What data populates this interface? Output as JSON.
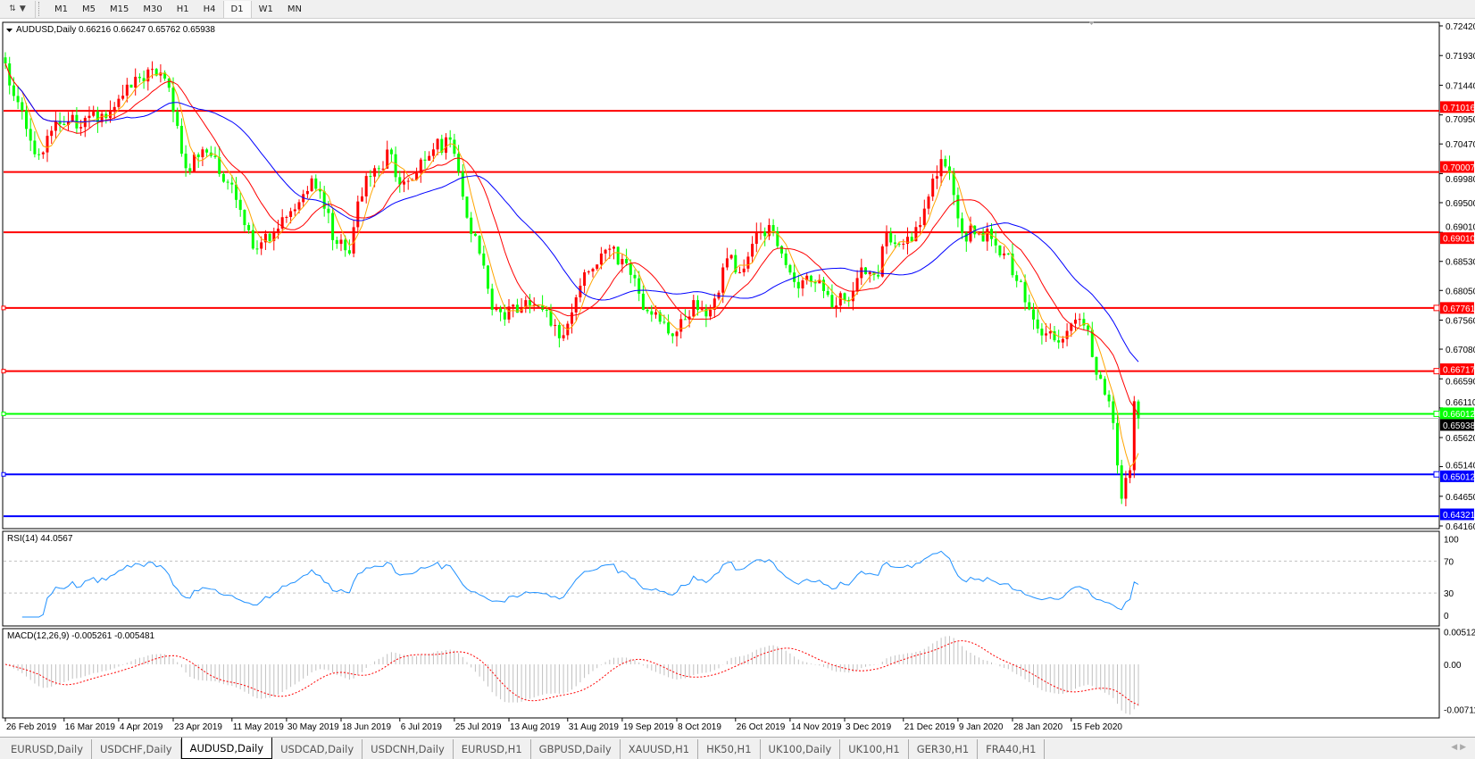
{
  "toolbar": {
    "icon": "line-studies-icon",
    "timeframes": [
      "M1",
      "M5",
      "M15",
      "M30",
      "H1",
      "H4",
      "D1",
      "W1",
      "MN"
    ],
    "active_timeframe": "D1"
  },
  "chart": {
    "header": "AUDUSD,Daily  0.66216 0.66247 0.65762 0.65938",
    "symbol": "AUDUSD",
    "period": "Daily",
    "current_price": "0.65938",
    "price_ticks": [
      "0.72420",
      "0.71930",
      "0.71440",
      "0.70950",
      "0.70470",
      "0.69980",
      "0.69500",
      "0.69010",
      "0.68530",
      "0.68050",
      "0.67560",
      "0.67080",
      "0.66590",
      "0.66110",
      "0.65620",
      "0.65140",
      "0.64650",
      "0.64160"
    ],
    "levels": [
      {
        "price": "0.71016",
        "color": "#ff0000"
      },
      {
        "price": "0.70007",
        "color": "#ff0000"
      },
      {
        "price": "0.69010",
        "color": "#ff0000"
      },
      {
        "price": "0.67761",
        "color": "#ff0000"
      },
      {
        "price": "0.66717",
        "color": "#ff0000"
      },
      {
        "price": "0.66012",
        "color": "#00ff00"
      },
      {
        "price": "0.65012",
        "color": "#0000ff"
      },
      {
        "price": "0.64321",
        "color": "#0000ff"
      }
    ],
    "date_ticks": [
      "26 Feb 2019",
      "16 Mar 2019",
      "4 Apr 2019",
      "23 Apr 2019",
      "11 May 2019",
      "30 May 2019",
      "18 Jun 2019",
      "6 Jul 2019",
      "25 Jul 2019",
      "13 Aug 2019",
      "31 Aug 2019",
      "19 Sep 2019",
      "8 Oct 2019",
      "26 Oct 2019",
      "14 Nov 2019",
      "3 Dec 2019",
      "21 Dec 2019",
      "9 Jan 2020",
      "28 Jan 2020",
      "15 Feb 2020"
    ],
    "colors": {
      "bull": "#ff0000",
      "bear": "#00ff00",
      "ma_fast": "#ffa500",
      "ma_mid": "#ff0000",
      "ma_slow": "#0000ff",
      "rsi": "#1e90ff",
      "macd_hist": "#c0c0c0",
      "macd_signal": "#ff0000"
    }
  },
  "rsi": {
    "label": "RSI(14) 44.0567",
    "ticks": [
      "100",
      "70",
      "30",
      "0"
    ]
  },
  "macd": {
    "label": "MACD(12,26,9) -0.005261 -0.005481",
    "ticks": [
      "0.005121",
      "0.00",
      "-0.00711"
    ]
  },
  "chart_data": {
    "type": "candlestick",
    "ylim": [
      0.6416,
      0.7242
    ],
    "approx_closes": [
      [
        "2019-02-26",
        0.718
      ],
      [
        "2019-03-01",
        0.7116
      ],
      [
        "2019-03-07",
        0.703
      ],
      [
        "2019-03-15",
        0.708
      ],
      [
        "2019-03-25",
        0.709
      ],
      [
        "2019-04-03",
        0.7108
      ],
      [
        "2019-04-09",
        0.714
      ],
      [
        "2019-04-15",
        0.717
      ],
      [
        "2019-04-19",
        0.7155
      ],
      [
        "2019-04-23",
        0.71
      ],
      [
        "2019-04-26",
        0.7007
      ],
      [
        "2019-05-02",
        0.7038
      ],
      [
        "2019-05-10",
        0.6983
      ],
      [
        "2019-05-16",
        0.6913
      ],
      [
        "2019-05-21",
        0.6874
      ],
      [
        "2019-05-27",
        0.69
      ],
      [
        "2019-05-31",
        0.6936
      ],
      [
        "2019-06-07",
        0.699
      ],
      [
        "2019-06-12",
        0.694
      ],
      [
        "2019-06-17",
        0.6882
      ],
      [
        "2019-06-20",
        0.6866
      ],
      [
        "2019-06-24",
        0.6952
      ],
      [
        "2019-06-28",
        0.7007
      ],
      [
        "2019-07-04",
        0.703
      ],
      [
        "2019-07-08",
        0.698
      ],
      [
        "2019-07-12",
        0.6999
      ],
      [
        "2019-07-18",
        0.7038
      ],
      [
        "2019-07-24",
        0.7054
      ],
      [
        "2019-07-29",
        0.696
      ],
      [
        "2019-08-02",
        0.6866
      ],
      [
        "2019-08-07",
        0.6773
      ],
      [
        "2019-08-12",
        0.6757
      ],
      [
        "2019-08-19",
        0.6789
      ],
      [
        "2019-08-23",
        0.6773
      ],
      [
        "2019-08-29",
        0.6726
      ],
      [
        "2019-09-02",
        0.675
      ],
      [
        "2019-09-06",
        0.6835
      ],
      [
        "2019-09-12",
        0.6866
      ],
      [
        "2019-09-16",
        0.6874
      ],
      [
        "2019-09-20",
        0.685
      ],
      [
        "2019-09-26",
        0.6773
      ],
      [
        "2019-09-30",
        0.6765
      ],
      [
        "2019-10-04",
        0.6734
      ],
      [
        "2019-10-10",
        0.6757
      ],
      [
        "2019-10-14",
        0.6789
      ],
      [
        "2019-10-18",
        0.6773
      ],
      [
        "2019-10-24",
        0.6858
      ],
      [
        "2019-10-29",
        0.6835
      ],
      [
        "2019-11-01",
        0.6882
      ],
      [
        "2019-11-07",
        0.6913
      ],
      [
        "2019-11-12",
        0.6866
      ],
      [
        "2019-11-15",
        0.6819
      ],
      [
        "2019-11-21",
        0.6819
      ],
      [
        "2019-11-26",
        0.6804
      ],
      [
        "2019-11-29",
        0.678
      ],
      [
        "2019-12-05",
        0.6804
      ],
      [
        "2019-12-09",
        0.6843
      ],
      [
        "2019-12-13",
        0.6828
      ],
      [
        "2019-12-17",
        0.69
      ],
      [
        "2019-12-23",
        0.6882
      ],
      [
        "2019-12-27",
        0.6913
      ],
      [
        "2019-12-31",
        0.696
      ],
      [
        "2020-01-03",
        0.7022
      ],
      [
        "2020-01-07",
        0.6999
      ],
      [
        "2020-01-10",
        0.69
      ],
      [
        "2020-01-16",
        0.69
      ],
      [
        "2020-01-21",
        0.689
      ],
      [
        "2020-01-24",
        0.6866
      ],
      [
        "2020-01-30",
        0.6819
      ],
      [
        "2020-02-04",
        0.6757
      ],
      [
        "2020-02-07",
        0.6734
      ],
      [
        "2020-02-12",
        0.6719
      ],
      [
        "2020-02-17",
        0.675
      ],
      [
        "2020-02-21",
        0.674
      ],
      [
        "2020-02-24",
        0.6695
      ],
      [
        "2020-02-27",
        0.6633
      ],
      [
        "2020-03-02",
        0.6586
      ],
      [
        "2020-03-04",
        0.6461
      ],
      [
        "2020-03-06",
        0.6508
      ],
      [
        "2020-03-09",
        0.6622
      ],
      [
        "2020-03-10",
        0.65938
      ]
    ],
    "last_bar": {
      "open": 0.66216,
      "high": 0.66247,
      "low": 0.65762,
      "close": 0.65938
    }
  },
  "tabs": {
    "items": [
      "EURUSD,Daily",
      "USDCHF,Daily",
      "AUDUSD,Daily",
      "USDCAD,Daily",
      "USDCNH,Daily",
      "EURUSD,H1",
      "GBPUSD,Daily",
      "XAUUSD,H1",
      "HK50,H1",
      "UK100,Daily",
      "UK100,H1",
      "GER30,H1",
      "FRA40,H1"
    ],
    "active": "AUDUSD,Daily"
  }
}
